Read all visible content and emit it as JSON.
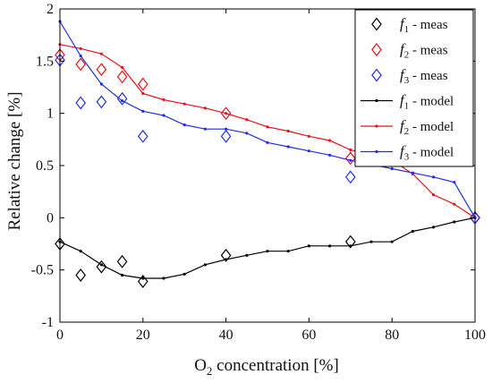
{
  "chart_data": {
    "type": "line",
    "xlabel_main": "O",
    "xlabel_sub": "2",
    "xlabel_rest": " concentration [%]",
    "ylabel": "Relative change [%]",
    "xlim": [
      0,
      100
    ],
    "ylim": [
      -1,
      2
    ],
    "xticks": [
      "0",
      "20",
      "40",
      "60",
      "80",
      "100"
    ],
    "yticks": [
      "-1",
      "-0.5",
      "0",
      "0.5",
      "1",
      "1.5",
      "2"
    ],
    "legend_position": "top-right",
    "grid": false,
    "series": [
      {
        "name_base": "f",
        "name_sub": "1",
        "name_suffix": " - meas",
        "kind": "scatter",
        "marker": "diamond",
        "color": "#000000",
        "x": [
          0,
          5,
          10,
          15,
          20,
          40,
          70,
          100
        ],
        "y": [
          -0.25,
          -0.55,
          -0.47,
          -0.42,
          -0.61,
          -0.36,
          -0.23,
          0.0
        ]
      },
      {
        "name_base": "f",
        "name_sub": "2",
        "name_suffix": " - meas",
        "kind": "scatter",
        "marker": "diamond",
        "color": "#e8121c",
        "x": [
          0,
          5,
          10,
          15,
          20,
          40,
          70,
          100
        ],
        "y": [
          1.56,
          1.47,
          1.42,
          1.35,
          1.28,
          1.0,
          0.57,
          0.0
        ]
      },
      {
        "name_base": "f",
        "name_sub": "3",
        "name_suffix": " - meas",
        "kind": "scatter",
        "marker": "diamond",
        "color": "#1f2fe8",
        "x": [
          0,
          5,
          10,
          15,
          20,
          40,
          70,
          100
        ],
        "y": [
          1.51,
          1.1,
          1.11,
          1.14,
          0.78,
          0.78,
          0.39,
          0.0
        ]
      },
      {
        "name_base": "f",
        "name_sub": "1",
        "name_suffix": " - model",
        "kind": "line",
        "marker": "dot",
        "color": "#000000",
        "x": [
          0,
          5,
          10,
          15,
          20,
          25,
          30,
          35,
          40,
          45,
          50,
          55,
          60,
          65,
          70,
          75,
          80,
          85,
          90,
          95,
          100
        ],
        "y": [
          -0.23,
          -0.32,
          -0.45,
          -0.55,
          -0.58,
          -0.58,
          -0.54,
          -0.45,
          -0.4,
          -0.36,
          -0.32,
          -0.32,
          -0.27,
          -0.27,
          -0.27,
          -0.23,
          -0.23,
          -0.13,
          -0.09,
          -0.04,
          0.0
        ]
      },
      {
        "name_base": "f",
        "name_sub": "2",
        "name_suffix": " - model",
        "kind": "line",
        "marker": "dot",
        "color": "#e8121c",
        "x": [
          0,
          5,
          10,
          15,
          20,
          25,
          30,
          35,
          40,
          45,
          50,
          55,
          60,
          65,
          70,
          75,
          80,
          85,
          90,
          95,
          100
        ],
        "y": [
          1.66,
          1.62,
          1.57,
          1.44,
          1.19,
          1.13,
          1.09,
          1.05,
          1.0,
          0.94,
          0.87,
          0.83,
          0.78,
          0.74,
          0.65,
          0.6,
          0.55,
          0.42,
          0.22,
          0.13,
          0.0
        ]
      },
      {
        "name_base": "f",
        "name_sub": "3",
        "name_suffix": " - model",
        "kind": "line",
        "marker": "dot",
        "color": "#1f2fe8",
        "x": [
          0,
          5,
          10,
          15,
          20,
          25,
          30,
          35,
          40,
          45,
          50,
          55,
          60,
          65,
          70,
          75,
          80,
          85,
          90,
          95,
          100
        ],
        "y": [
          1.88,
          1.55,
          1.28,
          1.12,
          1.02,
          0.98,
          0.89,
          0.85,
          0.85,
          0.81,
          0.72,
          0.68,
          0.64,
          0.6,
          0.55,
          0.51,
          0.47,
          0.43,
          0.39,
          0.34,
          0.0
        ]
      }
    ]
  }
}
